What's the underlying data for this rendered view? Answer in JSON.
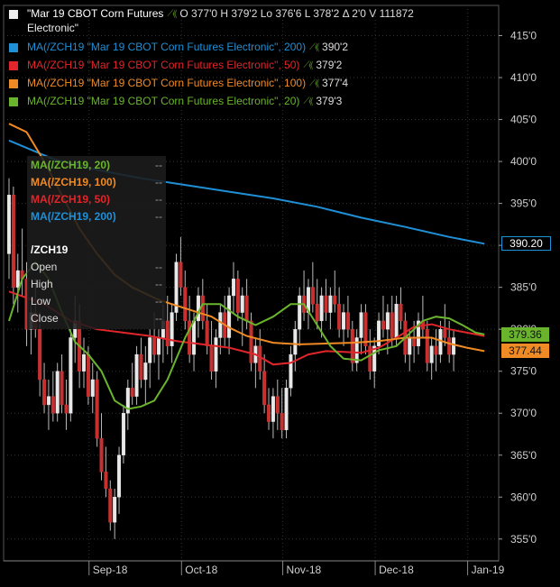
{
  "header": {
    "title": "\"Mar 19 CBOT Corn Futures",
    "title_line2": "Electronic\"",
    "ohlc": "O 377'0  H 379'2  Lo 376'6  L 378'2  Δ 2'0  V 111872",
    "title_color": "#ffffff"
  },
  "legend": [
    {
      "text": "MA(/ZCH19 \"Mar 19 CBOT Corn Futures Electronic\", 200)",
      "value": "390'2",
      "color": "#1f8fd6"
    },
    {
      "text": "MA(/ZCH19 \"Mar 19 CBOT Corn Futures Electronic\", 50)",
      "value": "379'2",
      "color": "#e0262a"
    },
    {
      "text": "MA(/ZCH19 \"Mar 19 CBOT Corn Futures Electronic\", 100)",
      "value": "377'4",
      "color": "#f08a24"
    },
    {
      "text": "MA(/ZCH19 \"Mar 19 CBOT Corn Futures Electronic\", 20)",
      "value": "379'3",
      "color": "#6ab42d"
    }
  ],
  "databox": {
    "rows": [
      {
        "label": "MA(/ZCH19, 20)",
        "value": "--",
        "color": "#6ab42d"
      },
      {
        "label": "MA(/ZCH19, 100)",
        "value": "--",
        "color": "#f08a24"
      },
      {
        "label": "MA(/ZCH19, 50)",
        "value": "--",
        "color": "#e0262a"
      },
      {
        "label": "MA(/ZCH19, 200)",
        "value": "--",
        "color": "#1f8fd6"
      }
    ],
    "symbol": "/ZCH19",
    "fields": [
      {
        "label": "Open",
        "value": "--"
      },
      {
        "label": "High",
        "value": "--"
      },
      {
        "label": "Low",
        "value": "--"
      },
      {
        "label": "Close",
        "value": "--"
      }
    ]
  },
  "price_tags": [
    {
      "text": "390.20",
      "value": 390.2,
      "color": "#1f8fd6",
      "text_color": "#ffffff",
      "border": true
    },
    {
      "text": "379.36",
      "value": 379.36,
      "color": "#6ab42d",
      "text_color": "#111111"
    },
    {
      "text": "377.44",
      "value": 377.44,
      "color": "#f08a24",
      "text_color": "#111111"
    }
  ],
  "chart_data": {
    "type": "candlestick",
    "y_ticks": [
      {
        "value": 415,
        "label": "415'0"
      },
      {
        "value": 410,
        "label": "410'0"
      },
      {
        "value": 405,
        "label": "405'0"
      },
      {
        "value": 400,
        "label": "400'0"
      },
      {
        "value": 395,
        "label": "395'0"
      },
      {
        "value": 390,
        "label": "390'0"
      },
      {
        "value": 385,
        "label": "385'0"
      },
      {
        "value": 380,
        "label": "380'0"
      },
      {
        "value": 375,
        "label": "375'0"
      },
      {
        "value": 370,
        "label": "370'0"
      },
      {
        "value": 365,
        "label": "365'0"
      },
      {
        "value": 360,
        "label": "360'0"
      },
      {
        "value": 355,
        "label": "355'0"
      }
    ],
    "ylim": [
      352.4,
      418.6
    ],
    "x_ticks": [
      {
        "index": 19,
        "label": "Sep-18"
      },
      {
        "index": 40,
        "label": "Oct-18"
      },
      {
        "index": 63,
        "label": "Nov-18"
      },
      {
        "index": 84,
        "label": "Dec-18"
      },
      {
        "index": 105,
        "label": "Jan-19"
      }
    ],
    "grid": true,
    "candles": [
      [
        389.0,
        398.0,
        386.0,
        396.0
      ],
      [
        396.0,
        397.0,
        383.0,
        385.0
      ],
      [
        385.0,
        389.0,
        382.0,
        387.0
      ],
      [
        387.0,
        392.0,
        384.0,
        386.0
      ],
      [
        386.0,
        388.0,
        378.0,
        380.0
      ],
      [
        380.0,
        383.0,
        377.0,
        382.0
      ],
      [
        382.0,
        386.0,
        379.0,
        380.0
      ],
      [
        380.0,
        382.0,
        372.0,
        374.0
      ],
      [
        374.0,
        376.0,
        370.0,
        371.0
      ],
      [
        371.0,
        374.0,
        368.0,
        372.0
      ],
      [
        372.0,
        375.0,
        369.0,
        370.0
      ],
      [
        370.0,
        376.0,
        369.0,
        375.0
      ],
      [
        375.0,
        377.0,
        370.0,
        371.0
      ],
      [
        371.0,
        374.0,
        368.0,
        370.0
      ],
      [
        370.0,
        380.0,
        369.0,
        379.0
      ],
      [
        379.0,
        384.0,
        376.0,
        381.0
      ],
      [
        381.0,
        383.0,
        373.0,
        375.0
      ],
      [
        375.0,
        379.0,
        373.0,
        377.0
      ],
      [
        377.0,
        378.0,
        371.0,
        372.0
      ],
      [
        372.0,
        376.0,
        370.0,
        374.0
      ],
      [
        374.0,
        375.0,
        366.0,
        367.0
      ],
      [
        367.0,
        370.0,
        362.0,
        363.0
      ],
      [
        363.0,
        366.0,
        360.0,
        361.0
      ],
      [
        361.0,
        362.0,
        356.0,
        357.0
      ],
      [
        357.0,
        361.0,
        355.0,
        360.0
      ],
      [
        360.0,
        366.0,
        358.0,
        365.0
      ],
      [
        365.0,
        371.0,
        364.0,
        370.0
      ],
      [
        370.0,
        374.0,
        368.0,
        373.0
      ],
      [
        373.0,
        376.0,
        371.0,
        372.0
      ],
      [
        372.0,
        378.0,
        371.0,
        377.0
      ],
      [
        377.0,
        379.0,
        373.0,
        374.0
      ],
      [
        374.0,
        378.0,
        371.0,
        376.0
      ],
      [
        376.0,
        380.0,
        373.0,
        379.0
      ],
      [
        379.0,
        382.0,
        376.0,
        377.0
      ],
      [
        377.0,
        380.0,
        374.0,
        379.0
      ],
      [
        379.0,
        383.0,
        376.0,
        381.0
      ],
      [
        381.0,
        384.0,
        377.0,
        378.0
      ],
      [
        378.0,
        383.0,
        376.0,
        382.0
      ],
      [
        382.0,
        389.0,
        381.0,
        388.0
      ],
      [
        388.0,
        391.0,
        384.0,
        385.0
      ],
      [
        385.0,
        387.0,
        380.0,
        381.0
      ],
      [
        381.0,
        384.0,
        376.0,
        377.0
      ],
      [
        377.0,
        382.0,
        375.0,
        381.0
      ],
      [
        381.0,
        385.0,
        379.0,
        384.0
      ],
      [
        384.0,
        386.0,
        380.0,
        381.0
      ],
      [
        381.0,
        383.0,
        377.0,
        378.0
      ],
      [
        378.0,
        381.0,
        374.0,
        375.0
      ],
      [
        375.0,
        380.0,
        373.0,
        379.0
      ],
      [
        379.0,
        383.0,
        377.0,
        382.0
      ],
      [
        382.0,
        384.0,
        378.0,
        379.0
      ],
      [
        379.0,
        385.0,
        377.0,
        384.0
      ],
      [
        384.0,
        388.0,
        382.0,
        386.0
      ],
      [
        386.0,
        387.0,
        381.0,
        382.0
      ],
      [
        382.0,
        385.0,
        378.0,
        384.0
      ],
      [
        384.0,
        386.0,
        380.0,
        381.0
      ],
      [
        381.0,
        382.0,
        375.0,
        376.0
      ],
      [
        376.0,
        379.0,
        373.0,
        378.0
      ],
      [
        378.0,
        380.0,
        374.0,
        375.0
      ],
      [
        375.0,
        377.0,
        370.0,
        371.0
      ],
      [
        371.0,
        373.0,
        368.0,
        369.0
      ],
      [
        369.0,
        373.0,
        367.0,
        372.0
      ],
      [
        372.0,
        374.0,
        368.0,
        370.0
      ],
      [
        370.0,
        373.0,
        367.0,
        368.0
      ],
      [
        368.0,
        374.0,
        367.0,
        373.0
      ],
      [
        373.0,
        378.0,
        372.0,
        377.0
      ],
      [
        377.0,
        381.0,
        375.0,
        380.0
      ],
      [
        380.0,
        385.0,
        378.0,
        384.0
      ],
      [
        384.0,
        387.0,
        381.0,
        382.0
      ],
      [
        382.0,
        386.0,
        380.0,
        385.0
      ],
      [
        385.0,
        388.0,
        382.0,
        383.0
      ],
      [
        383.0,
        386.0,
        380.0,
        381.0
      ],
      [
        381.0,
        385.0,
        379.0,
        384.0
      ],
      [
        384.0,
        386.0,
        381.0,
        382.0
      ],
      [
        382.0,
        385.0,
        380.0,
        384.0
      ],
      [
        384.0,
        387.0,
        382.0,
        383.0
      ],
      [
        383.0,
        385.0,
        379.0,
        380.0
      ],
      [
        380.0,
        383.0,
        378.0,
        382.0
      ],
      [
        382.0,
        384.0,
        379.0,
        380.0
      ],
      [
        380.0,
        381.0,
        375.0,
        376.0
      ],
      [
        376.0,
        380.0,
        375.0,
        379.0
      ],
      [
        379.0,
        383.0,
        377.0,
        382.0
      ],
      [
        382.0,
        383.0,
        377.0,
        378.0
      ],
      [
        378.0,
        380.0,
        374.0,
        375.0
      ],
      [
        375.0,
        379.0,
        373.0,
        378.0
      ],
      [
        378.0,
        382.0,
        377.0,
        381.0
      ],
      [
        381.0,
        384.0,
        379.0,
        380.0
      ],
      [
        380.0,
        383.0,
        377.0,
        382.0
      ],
      [
        382.0,
        384.0,
        378.0,
        379.0
      ],
      [
        379.0,
        384.0,
        378.0,
        383.0
      ],
      [
        383.0,
        385.0,
        380.0,
        381.0
      ],
      [
        381.0,
        382.0,
        376.0,
        377.0
      ],
      [
        377.0,
        380.0,
        375.0,
        379.0
      ],
      [
        379.0,
        381.0,
        376.0,
        378.0
      ],
      [
        378.0,
        382.0,
        377.0,
        381.0
      ],
      [
        381.0,
        384.0,
        379.0,
        380.0
      ],
      [
        380.0,
        381.0,
        375.0,
        376.0
      ],
      [
        376.0,
        379.0,
        374.0,
        378.0
      ],
      [
        378.0,
        380.0,
        375.0,
        377.0
      ],
      [
        377.0,
        381.0,
        376.0,
        380.0
      ],
      [
        380.0,
        383.0,
        378.0,
        379.0
      ],
      [
        379.0,
        381.0,
        376.0,
        377.0
      ],
      [
        377.0,
        380.0,
        375.0,
        379.0
      ]
    ],
    "series": [
      {
        "name": "MA(/ZCH19, 200)",
        "color": "#1f8fd6",
        "points": [
          [
            0,
            402.5
          ],
          [
            10,
            400.3
          ],
          [
            20,
            399.0
          ],
          [
            30,
            398.0
          ],
          [
            40,
            397.2
          ],
          [
            50,
            396.4
          ],
          [
            60,
            395.6
          ],
          [
            70,
            394.6
          ],
          [
            80,
            393.3
          ],
          [
            90,
            392.2
          ],
          [
            100,
            391.0
          ],
          [
            108,
            390.2
          ]
        ]
      },
      {
        "name": "MA(/ZCH19, 50)",
        "color": "#e0262a",
        "points": [
          [
            0,
            384.5
          ],
          [
            8,
            383.0
          ],
          [
            14,
            381.0
          ],
          [
            20,
            380.0
          ],
          [
            26,
            379.6
          ],
          [
            32,
            379.2
          ],
          [
            38,
            378.6
          ],
          [
            44,
            378.2
          ],
          [
            50,
            377.8
          ],
          [
            56,
            377.0
          ],
          [
            60,
            375.8
          ],
          [
            64,
            376.0
          ],
          [
            68,
            377.0
          ],
          [
            72,
            377.4
          ],
          [
            76,
            377.3
          ],
          [
            80,
            377.2
          ],
          [
            84,
            377.8
          ],
          [
            88,
            379.0
          ],
          [
            92,
            380.3
          ],
          [
            96,
            380.6
          ],
          [
            100,
            380.0
          ],
          [
            104,
            379.6
          ],
          [
            108,
            379.2
          ]
        ]
      },
      {
        "name": "MA(/ZCH19, 100)",
        "color": "#f08a24",
        "points": [
          [
            0,
            404.5
          ],
          [
            4,
            403.5
          ],
          [
            8,
            400.0
          ],
          [
            12,
            396.0
          ],
          [
            16,
            392.0
          ],
          [
            20,
            389.0
          ],
          [
            24,
            386.5
          ],
          [
            28,
            385.0
          ],
          [
            34,
            383.5
          ],
          [
            40,
            382.5
          ],
          [
            46,
            381.5
          ],
          [
            50,
            380.2
          ],
          [
            54,
            379.2
          ],
          [
            60,
            378.4
          ],
          [
            66,
            378.2
          ],
          [
            72,
            378.3
          ],
          [
            78,
            378.4
          ],
          [
            84,
            378.6
          ],
          [
            90,
            379.0
          ],
          [
            96,
            379.0
          ],
          [
            100,
            378.3
          ],
          [
            104,
            377.8
          ],
          [
            108,
            377.4
          ]
        ]
      },
      {
        "name": "MA(/ZCH19, 20)",
        "color": "#6ab42d",
        "points": [
          [
            0,
            381.0
          ],
          [
            3,
            386.0
          ],
          [
            6,
            388.0
          ],
          [
            9,
            386.0
          ],
          [
            12,
            382.0
          ],
          [
            15,
            378.5
          ],
          [
            18,
            377.0
          ],
          [
            21,
            375.0
          ],
          [
            24,
            371.5
          ],
          [
            27,
            370.5
          ],
          [
            30,
            370.8
          ],
          [
            33,
            371.5
          ],
          [
            36,
            374.0
          ],
          [
            40,
            379.0
          ],
          [
            44,
            383.0
          ],
          [
            48,
            383.0
          ],
          [
            52,
            381.5
          ],
          [
            56,
            380.5
          ],
          [
            60,
            381.5
          ],
          [
            64,
            383.0
          ],
          [
            67,
            383.0
          ],
          [
            70,
            380.5
          ],
          [
            73,
            378.0
          ],
          [
            76,
            376.5
          ],
          [
            80,
            376.3
          ],
          [
            84,
            377.5
          ],
          [
            88,
            378.0
          ],
          [
            91,
            379.5
          ],
          [
            94,
            381.0
          ],
          [
            97,
            381.5
          ],
          [
            100,
            381.3
          ],
          [
            103,
            380.5
          ],
          [
            106,
            379.6
          ],
          [
            108,
            379.4
          ]
        ]
      }
    ]
  }
}
